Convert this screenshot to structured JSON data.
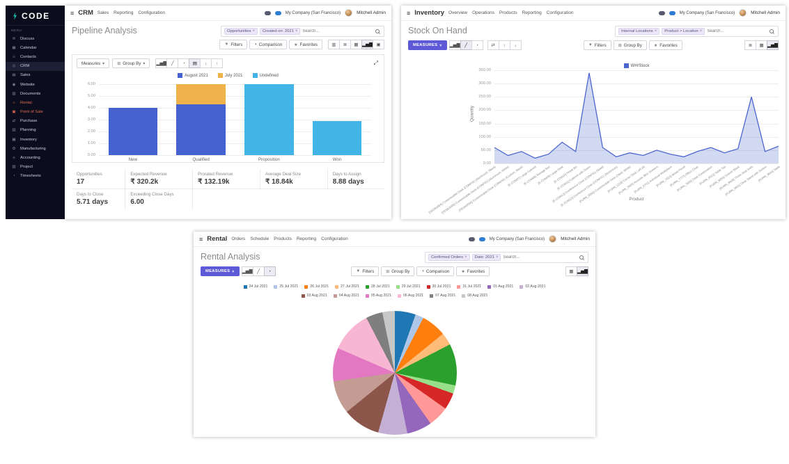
{
  "colors": {
    "accent_teal": "#12b3a8",
    "primary_purple": "#5e59d6",
    "sidebar_bg": "#0c0d1c",
    "series_blue": "#4662d0",
    "series_orange": "#f0b24a",
    "series_lightblue": "#42b4e6"
  },
  "icons": {
    "hamburger": "≡",
    "caret_down": "▾",
    "close": "×",
    "bar_chart": "▂▅▇",
    "line_chart": "╱",
    "pie_chart": "◔",
    "stacked": "▤",
    "flip_axis": "⇄",
    "sort_asc": "↑",
    "sort_desc": "↓",
    "expand": "⤢",
    "star": "★",
    "funnel": "▼",
    "comparison": "◑",
    "group": "⊞",
    "kanban": "▥",
    "list": "≣",
    "pivot": "▦",
    "graph": "▂▅▇",
    "calendar": "▣"
  },
  "sidebar": {
    "logo_text": "CODE",
    "menu_label": "MENU",
    "items": [
      {
        "label": "Discuss",
        "icon": "discuss-icon",
        "glyph": "✉"
      },
      {
        "label": "Calendar",
        "icon": "calendar-icon",
        "glyph": "▦"
      },
      {
        "label": "Contacts",
        "icon": "contacts-icon",
        "glyph": "☺"
      },
      {
        "label": "CRM",
        "icon": "crm-icon",
        "glyph": "◎",
        "active": true
      },
      {
        "label": "Sales",
        "icon": "sales-icon",
        "glyph": "▤"
      },
      {
        "label": "Website",
        "icon": "website-icon",
        "glyph": "◉"
      },
      {
        "label": "Documents",
        "icon": "documents-icon",
        "glyph": "▨"
      },
      {
        "label": "Rental",
        "icon": "rental-icon",
        "glyph": "⌂",
        "accent": true
      },
      {
        "label": "Point of Sale",
        "icon": "point-of-sale-icon",
        "glyph": "▣",
        "accent": true
      },
      {
        "label": "Purchase",
        "icon": "purchase-icon",
        "glyph": "⇄"
      },
      {
        "label": "Planning",
        "icon": "planning-icon",
        "glyph": "▥"
      },
      {
        "label": "Inventory",
        "icon": "inventory-icon",
        "glyph": "▦"
      },
      {
        "label": "Manufacturing",
        "icon": "manufacturing-icon",
        "glyph": "⚙"
      },
      {
        "label": "Accounting",
        "icon": "accounting-icon",
        "glyph": "≡"
      },
      {
        "label": "Project",
        "icon": "project-icon",
        "glyph": "▧"
      },
      {
        "label": "Timesheets",
        "icon": "timesheets-icon",
        "glyph": "◔"
      }
    ]
  },
  "topbar": {
    "company": "My Company (San Francisco)",
    "user": "Mitchell Admin"
  },
  "crm": {
    "app": "CRM",
    "menu": [
      "Sales",
      "Reporting",
      "Configuration"
    ],
    "title": "Pipeline Analysis",
    "facets": [
      "Opportunities",
      "Created on: 2021"
    ],
    "search_placeholder": "Search...",
    "buttons": {
      "filters": "Filters",
      "comparison": "Comparison",
      "favorites": "Favorites"
    },
    "chart_toolbar": {
      "measures": "Measures",
      "group_by": "Group By"
    },
    "chart_icons": [
      "bar_chart",
      "line_chart",
      "pie_chart",
      "stacked",
      "sort_desc",
      "sort_asc"
    ],
    "chart_icons_active": "stacked",
    "view_switcher": [
      "kanban",
      "list",
      "pivot",
      "graph",
      "calendar"
    ],
    "view_switcher_active": "graph",
    "stats": [
      {
        "label": "Opportunities",
        "value": "17"
      },
      {
        "label": "Expected Revenue",
        "value": "₹ 320.2k"
      },
      {
        "label": "Prorated Revenue",
        "value": "₹ 132.19k"
      },
      {
        "label": "Average Deal Size",
        "value": "₹ 18.84k"
      },
      {
        "label": "Days to Assign",
        "value": "8.88 days"
      },
      {
        "label": "Days to Close",
        "value": "5.71 days"
      },
      {
        "label": "Exceeding Close Days",
        "value": "6.00"
      }
    ]
  },
  "inventory": {
    "app": "Inventory",
    "menu": [
      "Overview",
      "Operations",
      "Products",
      "Reporting",
      "Configuration"
    ],
    "title": "Stock On Hand",
    "facets": [
      "Internal Locations",
      "Product > Location"
    ],
    "search_placeholder": "Search...",
    "buttons": {
      "measures": "MEASURES",
      "filters": "Filters",
      "group_by": "Group By",
      "favorites": "Favorites"
    },
    "chart_icons": [
      "bar_chart",
      "line_chart",
      "pie_chart"
    ],
    "chart_icons_active": "line_chart",
    "extra_icons": [
      "flip_axis",
      "sort_asc",
      "sort_desc"
    ],
    "view_switcher": [
      "list",
      "pivot",
      "graph"
    ],
    "view_switcher_active": "graph"
  },
  "rental": {
    "app": "Rental",
    "menu": [
      "Orders",
      "Schedule",
      "Products",
      "Reporting",
      "Configuration"
    ],
    "title": "Rental Analysis",
    "facets": [
      "Confirmed Orders",
      "Date: 2021"
    ],
    "search_placeholder": "Search...",
    "buttons": {
      "measures": "MEASURES",
      "filters": "Filters",
      "group_by": "Group By",
      "comparison": "Comparison",
      "favorites": "Favorites"
    },
    "chart_icons": [
      "bar_chart",
      "line_chart",
      "pie_chart"
    ],
    "chart_icons_active": "pie_chart",
    "view_switcher": [
      "pivot",
      "graph"
    ],
    "view_switcher_active": "graph"
  },
  "chart_data": [
    {
      "id": "crm_pipeline",
      "type": "bar",
      "stacked": true,
      "title": "Pipeline Analysis",
      "categories": [
        "New",
        "Qualified",
        "Proposition",
        "Won"
      ],
      "series": [
        {
          "name": "August 2021",
          "color": "#4662d0",
          "values": [
            4,
            4.3,
            0,
            0
          ]
        },
        {
          "name": "July 2021",
          "color": "#f0b24a",
          "values": [
            0,
            1.7,
            0,
            0
          ]
        },
        {
          "name": "Undefined",
          "color": "#42b4e6",
          "values": [
            0,
            0,
            6,
            2.9
          ]
        }
      ],
      "ylim": [
        0,
        6
      ],
      "yticks": [
        "6.00",
        "5.00",
        "4.00",
        "3.00",
        "2.00",
        "1.00",
        "0.00"
      ],
      "grid": true,
      "legend_position": "top"
    },
    {
      "id": "inventory_stock",
      "type": "line",
      "title": "Stock On Hand",
      "xlabel": "Product",
      "ylabel": "Quantity",
      "categories": [
        "[DESK0004] Customizable Desk (CONFIG) (Aluminium, Black)",
        "[DESK0005] Customizable Desk (CONFIG) (Aluminium, White)",
        "[DESK0006] Customizable Desk (CONFIG) (Custom, Black)",
        "[E-COM07] Large Cabinet",
        "[E-COM08] Storage Box",
        "[E-COM09] Large Desk",
        "[E-COM10] Pedal Bin",
        "[E-COM11] Cabinet with Doors",
        "[E-COM12] Conference Chair (CONFIG) (Steel)",
        "[E-COM13] Conference Chair (CONFIG) (Aluminium)",
        "[FURN_0096] Customizable Desk (Steel, White)",
        "[FURN_1118] Corner Desk Left Sit",
        "[FURN_5555] Acoustic Bloc Screens",
        "[FURN_6741] Individual Workplace",
        "[FURN_7023] Wood Panel",
        "[FURN_7777] Office Chair",
        "[FURN_7800] Desk Combination",
        "[FURN_8522] Table Top",
        "[FURN_8855] Drawer Black",
        "[FURN_8999] Three-Seat Sofa",
        "[FURN_9001] Desk Stand with Screen",
        "[FURN_9666] Table"
      ],
      "series": [
        {
          "name": "WH/Stock",
          "color": "#4c66d0",
          "values": [
            60,
            30,
            45,
            20,
            35,
            80,
            45,
            340,
            60,
            25,
            40,
            30,
            50,
            35,
            25,
            45,
            60,
            40,
            55,
            250,
            45,
            65
          ]
        }
      ],
      "ylim": [
        0,
        350
      ],
      "yticks": [
        "350.00",
        "300.00",
        "250.00",
        "200.00",
        "150.00",
        "100.00",
        "50.00",
        "0.00"
      ],
      "grid": true,
      "legend_position": "top"
    },
    {
      "id": "rental_analysis",
      "type": "pie",
      "title": "Rental Analysis",
      "categories": [
        "24 Jul 2021",
        "25 Jul 2021",
        "26 Jul 2021",
        "27 Jul 2021",
        "28 Jul 2021",
        "29 Jul 2021",
        "30 Jul 2021",
        "31 Jul 2021",
        "01 Aug 2021",
        "02 Aug 2021",
        "03 Aug 2021",
        "04 Aug 2021",
        "05 Aug 2021",
        "06 Aug 2021",
        "07 Aug 2021",
        "08 Aug 2021"
      ],
      "values": [
        5,
        2,
        6,
        3,
        10,
        2,
        4,
        5,
        6,
        7,
        9,
        8,
        8,
        10,
        4,
        3
      ],
      "colors": [
        "#1f77b4",
        "#aec7e8",
        "#ff7f0e",
        "#ffbb78",
        "#2ca02c",
        "#98df8a",
        "#d62728",
        "#ff9896",
        "#9467bd",
        "#c5b0d5",
        "#8c564b",
        "#c49c94",
        "#e377c2",
        "#f7b6d2",
        "#7f7f7f",
        "#c7c7c7"
      ],
      "legend_position": "top"
    }
  ]
}
